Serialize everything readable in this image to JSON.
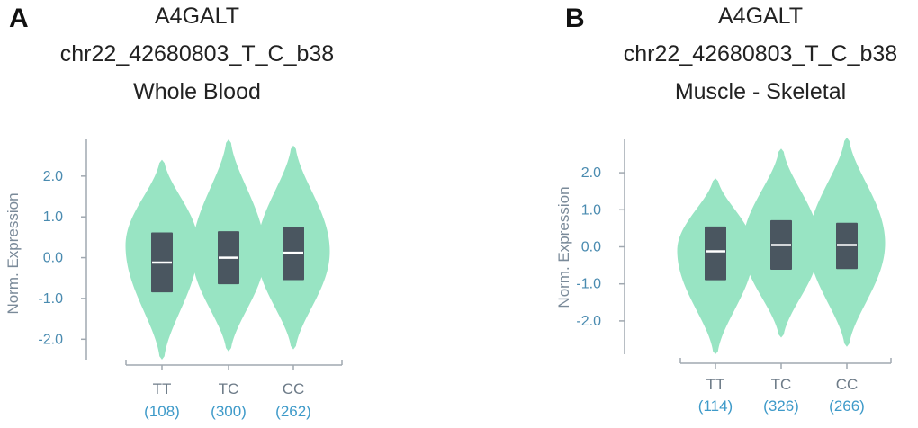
{
  "colors": {
    "violin": "#98e4c3",
    "box": "#4a5660",
    "median": "#ffffff",
    "axis": "#a0a8b0",
    "tick_label": "#4a8bb0",
    "count_label": "#3e9ac9"
  },
  "chart_data": [
    {
      "panel_label": "A",
      "title": [
        "A4GALT",
        "chr22_42680803_T_C_b38",
        "Whole Blood"
      ],
      "type": "violin",
      "ylabel": "Norm. Expression",
      "ylim": [
        -2.5,
        2.9
      ],
      "yticks": [
        "2.0",
        "1.0",
        "0.0",
        "-1.0",
        "-2.0"
      ],
      "ytick_values": [
        2.0,
        1.0,
        0.0,
        -1.0,
        -2.0
      ],
      "categories": [
        "TT",
        "TC",
        "CC"
      ],
      "counts": [
        "(108)",
        "(300)",
        "(262)"
      ],
      "groups": [
        {
          "min": -2.5,
          "max": 2.4,
          "q1": -0.85,
          "median": -0.12,
          "q3": 0.62,
          "peak": 0.3
        },
        {
          "min": -2.3,
          "max": 2.9,
          "q1": -0.65,
          "median": 0.0,
          "q3": 0.65,
          "peak": 0.1
        },
        {
          "min": -2.25,
          "max": 2.75,
          "q1": -0.55,
          "median": 0.12,
          "q3": 0.75,
          "peak": 0.15
        }
      ]
    },
    {
      "panel_label": "B",
      "title": [
        "A4GALT",
        "chr22_42680803_T_C_b38",
        "Muscle - Skeletal"
      ],
      "type": "violin",
      "ylabel": "Norm. Expression",
      "ylim": [
        -2.9,
        2.9
      ],
      "yticks": [
        "2.0",
        "1.0",
        "0.0",
        "-1.0",
        "-2.0"
      ],
      "ytick_values": [
        2.0,
        1.0,
        0.0,
        -1.0,
        -2.0
      ],
      "categories": [
        "TT",
        "TC",
        "CC"
      ],
      "counts": [
        "(114)",
        "(326)",
        "(266)"
      ],
      "groups": [
        {
          "min": -2.9,
          "max": 1.85,
          "q1": -0.9,
          "median": -0.12,
          "q3": 0.55,
          "peak": -0.1
        },
        {
          "min": -2.45,
          "max": 2.65,
          "q1": -0.62,
          "median": 0.05,
          "q3": 0.72,
          "peak": 0.05
        },
        {
          "min": -2.7,
          "max": 2.95,
          "q1": -0.6,
          "median": 0.05,
          "q3": 0.65,
          "peak": 0.1
        }
      ]
    }
  ]
}
